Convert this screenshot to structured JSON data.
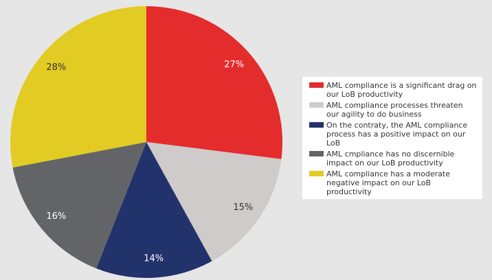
{
  "chart_data": {
    "type": "pie",
    "categories": [
      "AML compliance is a significant drag on our LoB productivity",
      "AML compliance processes threaten our agility to do business",
      "On the contraty, the AML compliance process has a positive impact on our LoB",
      "AML cmpliance has no discernible impact on our LoB productivity",
      "AML compliance has a moderate negative impact on our LoB productivity"
    ],
    "values": [
      27,
      15,
      14,
      16,
      28
    ],
    "value_labels": [
      "27%",
      "15%",
      "14%",
      "16%",
      "28%"
    ],
    "colors": [
      "#e42c2c",
      "#cfcbca",
      "#22326a",
      "#636468",
      "#e2cb22"
    ],
    "label_colors": [
      "#ffffff",
      "#333333",
      "#ffffff",
      "#ffffff",
      "#333333"
    ],
    "legend": "right"
  }
}
